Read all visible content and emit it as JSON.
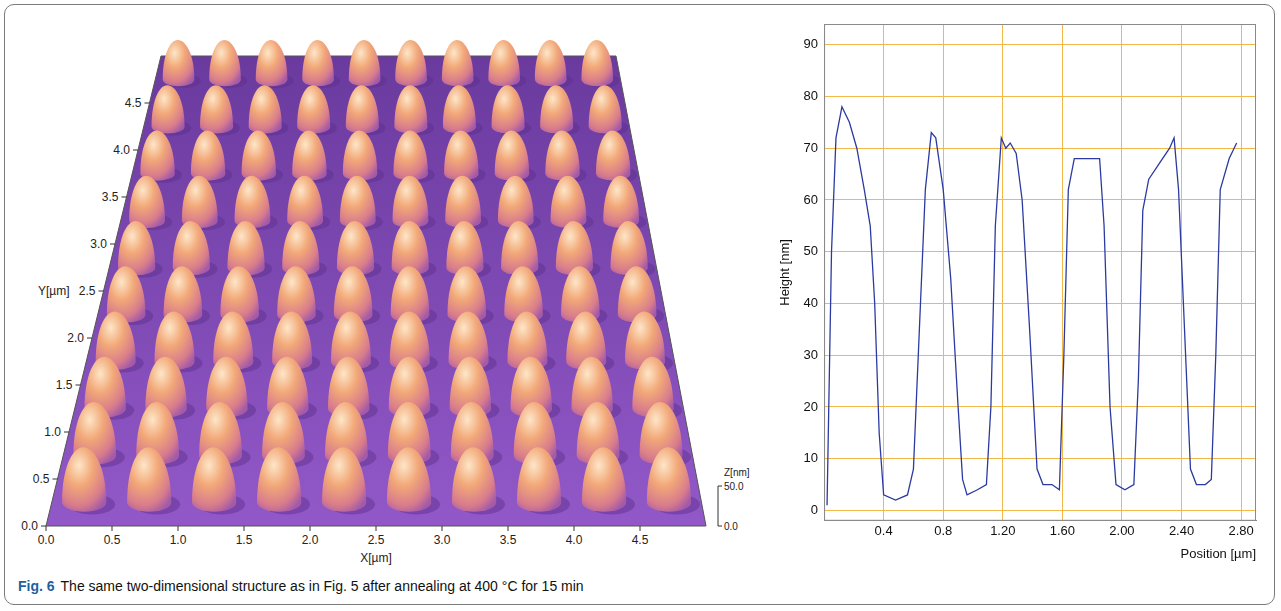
{
  "caption": {
    "label": "Fig. 6",
    "text": "The same two-dimensional structure as in Fig. 5 after annealing at 400 °C for 15 min"
  },
  "afm_image": {
    "x_label": "X[µm]",
    "y_label": "Y[µm]",
    "z_label": "Z[nm]",
    "xlim": [
      0,
      5
    ],
    "ylim": [
      0,
      5
    ],
    "zlim": [
      0,
      50
    ],
    "xticks": [
      {
        "value": 0,
        "label": "0.0"
      },
      0.5,
      {
        "value": 1,
        "label": "1.0"
      },
      1.5,
      {
        "value": 2,
        "label": "2.0"
      },
      2.5,
      {
        "value": 3,
        "label": "3.0"
      },
      3.5,
      {
        "value": 4,
        "label": "4.0"
      },
      4.5
    ],
    "yticks": [
      {
        "value": 0,
        "label": "0.0"
      },
      0.5,
      {
        "value": 1,
        "label": "1.0"
      },
      1.5,
      {
        "value": 2,
        "label": "2.0"
      },
      2.5,
      {
        "value": 3,
        "label": "3.0"
      },
      3.5,
      {
        "value": 4,
        "label": "4.0"
      },
      4.5
    ],
    "zticks": [
      {
        "value": 0,
        "label": "0.0"
      },
      {
        "value": 50,
        "label": "50.0"
      }
    ],
    "islands": {
      "pitch": 0.5,
      "height": 70
    }
  },
  "chart_data": {
    "type": "line",
    "x_label": "Position [µm]",
    "y_label": "Height [nm]",
    "x": [
      0.02,
      0.05,
      0.08,
      0.12,
      0.17,
      0.22,
      0.27,
      0.31,
      0.34,
      0.37,
      0.4,
      0.48,
      0.56,
      0.6,
      0.64,
      0.68,
      0.72,
      0.75,
      0.8,
      0.85,
      0.9,
      0.93,
      0.96,
      1.03,
      1.09,
      1.12,
      1.15,
      1.19,
      1.22,
      1.25,
      1.29,
      1.33,
      1.38,
      1.43,
      1.47,
      1.53,
      1.58,
      1.61,
      1.64,
      1.68,
      1.76,
      1.85,
      1.88,
      1.92,
      1.96,
      2.02,
      2.08,
      2.11,
      2.14,
      2.18,
      2.25,
      2.32,
      2.35,
      2.38,
      2.42,
      2.46,
      2.5,
      2.56,
      2.6,
      2.63,
      2.66,
      2.72,
      2.77
    ],
    "values": [
      1,
      50,
      72,
      78,
      75,
      70,
      62,
      55,
      40,
      15,
      3,
      2,
      3,
      8,
      35,
      62,
      73,
      72,
      62,
      45,
      20,
      6,
      3,
      4,
      5,
      20,
      55,
      72,
      70,
      71,
      69,
      60,
      35,
      8,
      5,
      5,
      4,
      30,
      62,
      68,
      68,
      68,
      55,
      20,
      5,
      4,
      5,
      25,
      58,
      64,
      67,
      70,
      72,
      62,
      35,
      8,
      5,
      5,
      6,
      30,
      62,
      68,
      71
    ],
    "color": "#2b3aa0",
    "xlim": [
      0,
      2.9
    ],
    "ylim": [
      -2,
      94
    ],
    "xticks": [
      0.4,
      0.8,
      {
        "value": 1.2,
        "label": "1.20"
      },
      {
        "value": 1.6,
        "label": "1.60"
      },
      {
        "value": 2,
        "label": "2.00"
      },
      {
        "value": 2.4,
        "label": "2.40"
      },
      {
        "value": 2.8,
        "label": "2.80"
      }
    ],
    "yticks": [
      0,
      10,
      20,
      30,
      40,
      50,
      60,
      70,
      80,
      90
    ],
    "grid": true
  }
}
